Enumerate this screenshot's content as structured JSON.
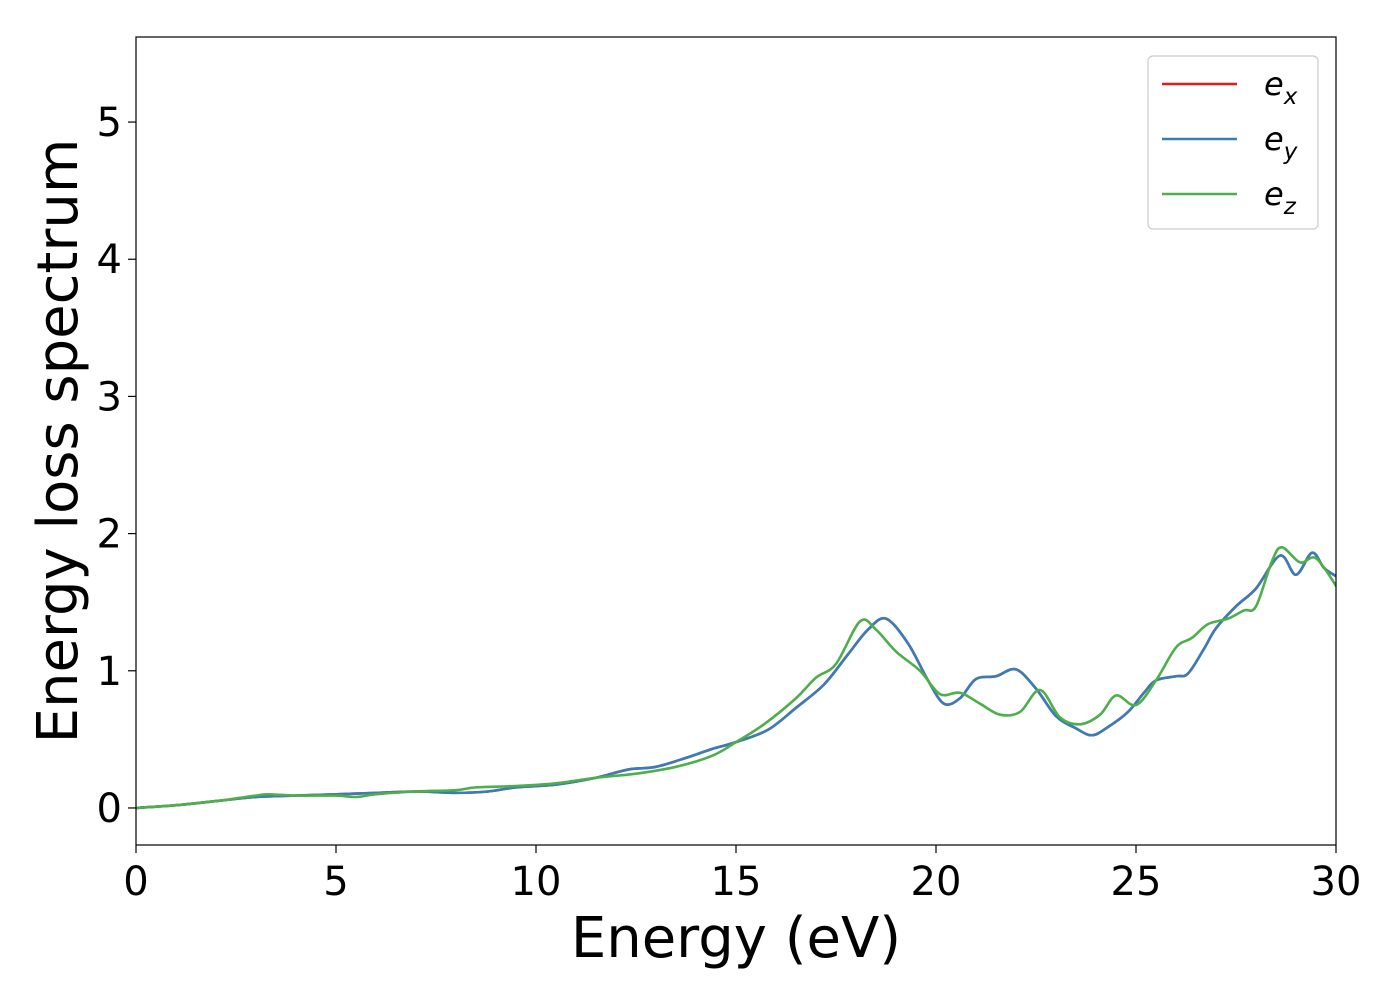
{
  "chart_data": {
    "type": "line",
    "xlabel": "Energy (eV)",
    "ylabel": "Energy loss spectrum",
    "xlim": [
      0,
      30
    ],
    "ylim": [
      -0.27,
      5.62
    ],
    "xticks": [
      0,
      5,
      10,
      15,
      20,
      25,
      30
    ],
    "yticks": [
      0,
      1,
      2,
      3,
      4,
      5
    ],
    "grid": false,
    "legend_position": "top-right",
    "legend": [
      {
        "base": "e",
        "sub": "x",
        "color": "#e41a1c"
      },
      {
        "base": "e",
        "sub": "y",
        "color": "#377eb8"
      },
      {
        "base": "e",
        "sub": "z",
        "color": "#4daf4a"
      }
    ],
    "series": [
      {
        "name": "e_x",
        "color": "#e41a1c",
        "x": [
          0,
          1,
          2,
          3,
          4,
          5,
          6,
          7,
          8,
          8.8,
          9.5,
          10.5,
          11.5,
          12.3,
          13,
          13.8,
          14.4,
          15,
          15.8,
          16.5,
          17.2,
          17.8,
          18.3,
          18.75,
          19.3,
          19.8,
          20.2,
          20.6,
          21,
          21.5,
          22,
          22.5,
          23,
          23.5,
          23.9,
          24.3,
          24.8,
          25.2,
          25.5,
          26,
          26.3,
          26.7,
          27,
          27.5,
          28,
          28.6,
          29,
          29.4,
          29.7,
          30
        ],
        "y": [
          0.0,
          0.02,
          0.05,
          0.08,
          0.09,
          0.1,
          0.11,
          0.12,
          0.11,
          0.12,
          0.15,
          0.17,
          0.22,
          0.28,
          0.3,
          0.37,
          0.43,
          0.48,
          0.57,
          0.73,
          0.9,
          1.12,
          1.3,
          1.38,
          1.2,
          0.93,
          0.76,
          0.8,
          0.94,
          0.96,
          1.01,
          0.87,
          0.67,
          0.58,
          0.53,
          0.59,
          0.7,
          0.84,
          0.93,
          0.96,
          0.98,
          1.16,
          1.31,
          1.47,
          1.6,
          1.84,
          1.7,
          1.86,
          1.75,
          1.69
        ]
      },
      {
        "name": "e_y",
        "color": "#377eb8",
        "x": [
          0,
          1,
          2,
          3,
          4,
          5,
          6,
          7,
          8,
          8.8,
          9.5,
          10.5,
          11.5,
          12.3,
          13,
          13.8,
          14.4,
          15,
          15.8,
          16.5,
          17.2,
          17.8,
          18.3,
          18.75,
          19.3,
          19.8,
          20.2,
          20.6,
          21,
          21.5,
          22,
          22.5,
          23,
          23.5,
          23.9,
          24.3,
          24.8,
          25.2,
          25.5,
          26,
          26.3,
          26.7,
          27,
          27.5,
          28,
          28.6,
          29,
          29.4,
          29.7,
          30
        ],
        "y": [
          0.0,
          0.02,
          0.05,
          0.08,
          0.09,
          0.1,
          0.11,
          0.12,
          0.11,
          0.12,
          0.15,
          0.17,
          0.22,
          0.28,
          0.3,
          0.37,
          0.43,
          0.48,
          0.57,
          0.73,
          0.9,
          1.12,
          1.3,
          1.38,
          1.2,
          0.93,
          0.76,
          0.8,
          0.94,
          0.96,
          1.01,
          0.87,
          0.67,
          0.58,
          0.53,
          0.59,
          0.7,
          0.84,
          0.93,
          0.96,
          0.98,
          1.16,
          1.31,
          1.47,
          1.6,
          1.84,
          1.7,
          1.86,
          1.75,
          1.69
        ]
      },
      {
        "name": "e_z",
        "color": "#4daf4a",
        "x": [
          0,
          1,
          2,
          3,
          3.3,
          4,
          5,
          5.5,
          6,
          7,
          8,
          8.5,
          9.5,
          10.5,
          11.5,
          12.5,
          13.5,
          14.4,
          15,
          15.7,
          16.5,
          17,
          17.5,
          18.1,
          18.5,
          19,
          19.6,
          20.1,
          20.6,
          21.1,
          21.6,
          22.1,
          22.6,
          23.1,
          23.6,
          24.1,
          24.5,
          25,
          25.5,
          26,
          26.4,
          26.8,
          27.3,
          27.7,
          28,
          28.4,
          28.65,
          29.1,
          29.5,
          30
        ],
        "y": [
          0.0,
          0.02,
          0.05,
          0.09,
          0.1,
          0.09,
          0.09,
          0.08,
          0.1,
          0.12,
          0.13,
          0.15,
          0.16,
          0.18,
          0.22,
          0.25,
          0.3,
          0.38,
          0.48,
          0.61,
          0.8,
          0.95,
          1.05,
          1.36,
          1.3,
          1.14,
          1.0,
          0.83,
          0.84,
          0.76,
          0.68,
          0.7,
          0.86,
          0.66,
          0.61,
          0.68,
          0.82,
          0.75,
          0.93,
          1.17,
          1.24,
          1.34,
          1.38,
          1.44,
          1.47,
          1.8,
          1.9,
          1.79,
          1.82,
          1.62
        ]
      }
    ]
  }
}
